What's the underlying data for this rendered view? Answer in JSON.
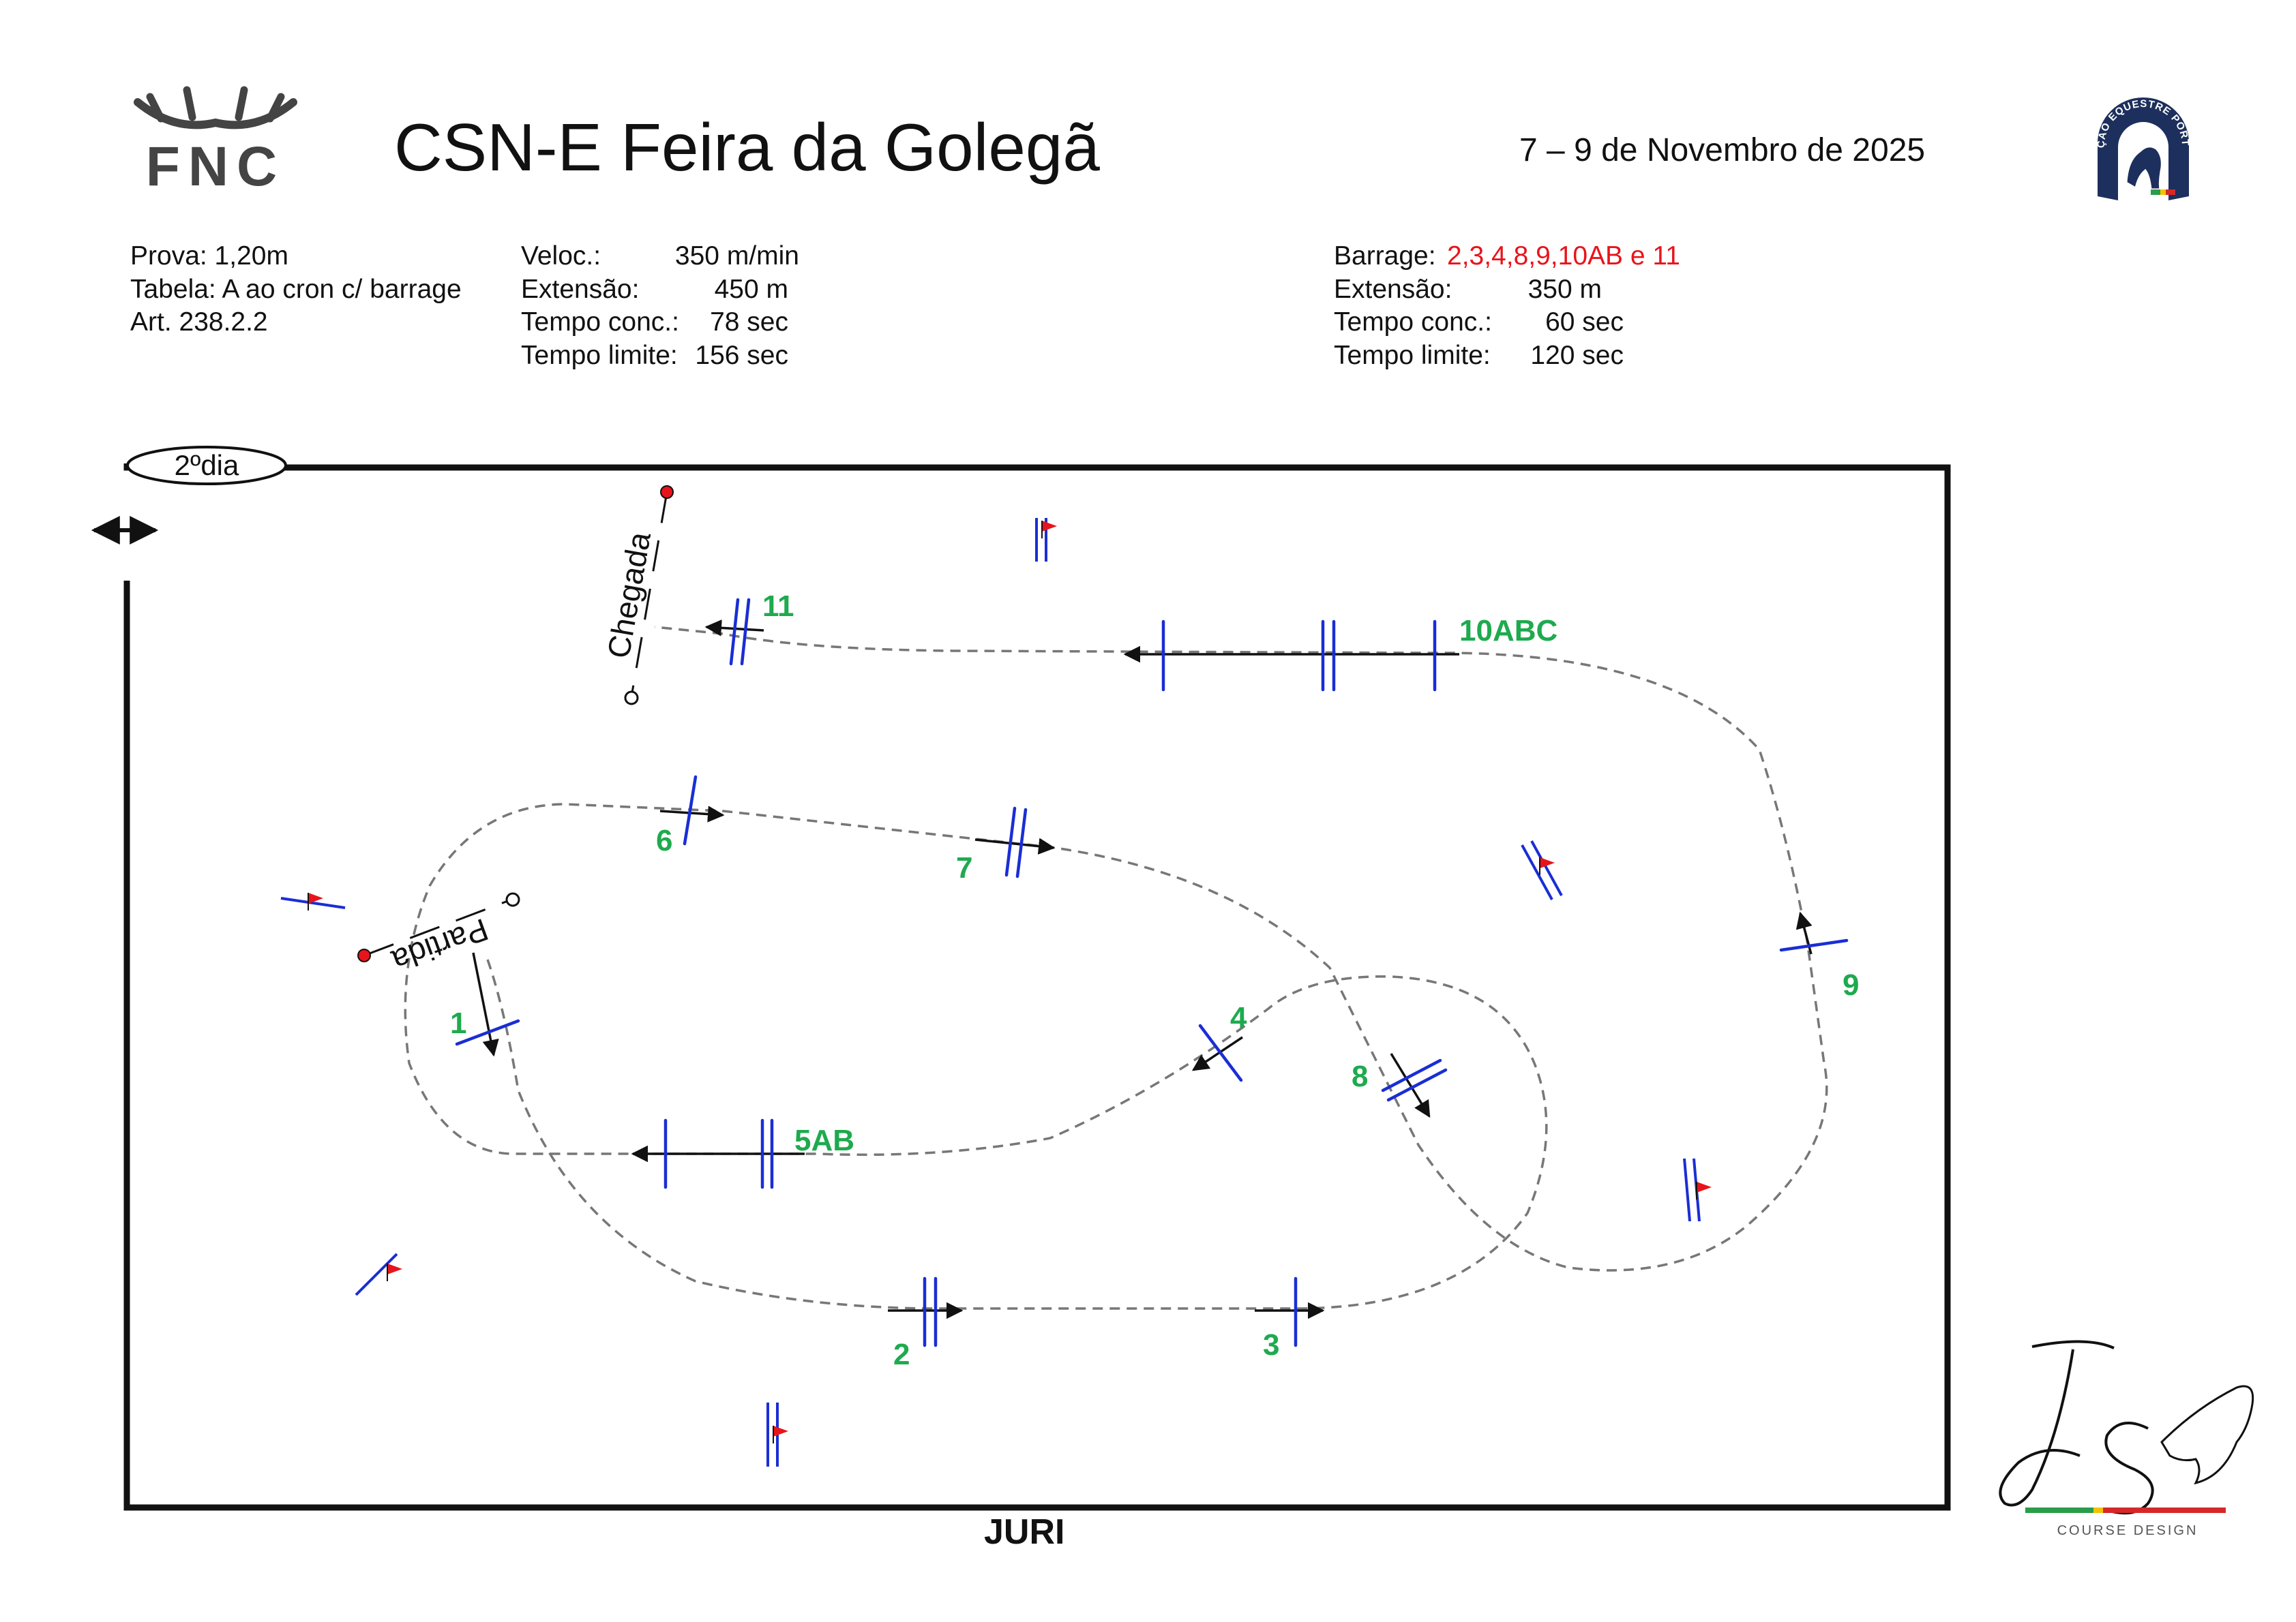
{
  "header": {
    "federation_logo_text": "FNC",
    "title": "CSN-E Feira da Golegã",
    "date": "7 – 9 de Novembro de 2025",
    "right_logo_text": "FEDERAÇÃO EQUESTRE PORTUGUESA"
  },
  "info_left": {
    "prova": "Prova: 1,20m",
    "tabela": "Tabela: A ao cron c/ barrage",
    "art": "Art. 238.2.2"
  },
  "info_mid": {
    "veloc_label": "Veloc.:",
    "veloc_value": "350 m/min",
    "extensao_label": "Extensão:",
    "extensao_value": "450 m",
    "tempo_conc_label": "Tempo conc.:",
    "tempo_conc_value": "78 sec",
    "tempo_limite_label": "Tempo limite:",
    "tempo_limite_value": "156 sec"
  },
  "info_right": {
    "barrage_label": "Barrage:",
    "barrage_value": "2,3,4,8,9,10AB e 11",
    "extensao_label": "Extensão:",
    "extensao_value": "350 m",
    "tempo_conc_label": "Tempo conc.:",
    "tempo_conc_value": "60 sec",
    "tempo_limite_label": "Tempo limite:",
    "tempo_limite_value": "120 sec"
  },
  "arena": {
    "day_label": "2ºdia",
    "start_label": "Partida",
    "finish_label": "Chegada",
    "jury_label": "JURI"
  },
  "obstacles": [
    {
      "number": "1"
    },
    {
      "number": "2"
    },
    {
      "number": "3"
    },
    {
      "number": "4"
    },
    {
      "number": "5AB"
    },
    {
      "number": "6"
    },
    {
      "number": "7"
    },
    {
      "number": "8"
    },
    {
      "number": "9"
    },
    {
      "number": "10ABC"
    },
    {
      "number": "11"
    }
  ],
  "designer_logo": {
    "initials": "JS",
    "caption": "COURSE DESIGN"
  },
  "colors": {
    "fence": "#1a2ed4",
    "number": "#1eaa4e",
    "flag": "#e8141b",
    "path": "#777777",
    "barrage_highlight": "#e8141b"
  }
}
